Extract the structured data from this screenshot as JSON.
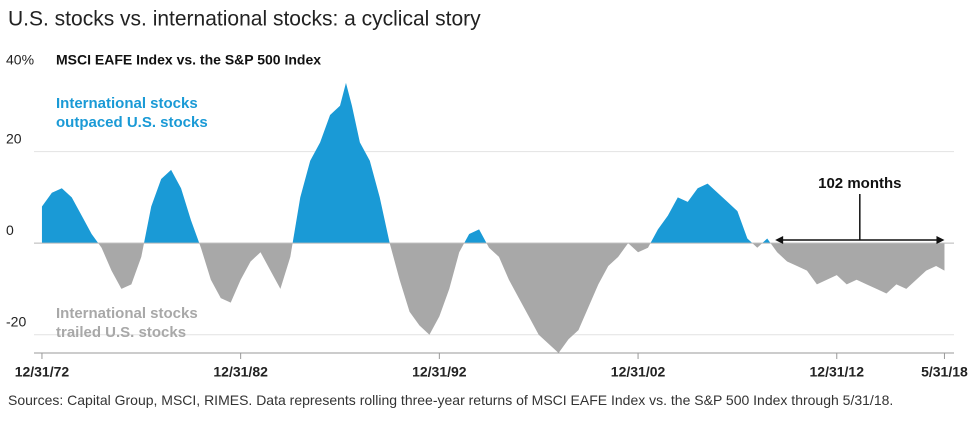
{
  "chart_data": {
    "type": "area",
    "title": "U.S. stocks vs. international stocks: a cyclical story",
    "subtitle": "MSCI EAFE Index vs. the S&P 500 Index",
    "source": "Sources: Capital Group, MSCI, RIMES. Data represents rolling three-year returns of MSCI EAFE Index vs. the S&P 500 Index through 5/31/18.",
    "positive_color": "#1a9ad6",
    "negative_color": "#a8a8a8",
    "annotations": {
      "outpaced": [
        "International stocks",
        "outpaced U.S. stocks"
      ],
      "trailed": [
        "International stocks",
        "trailed U.S. stocks"
      ],
      "span": "102 months"
    },
    "x": [
      1973.0,
      1973.5,
      1974.0,
      1974.5,
      1975.0,
      1975.5,
      1976.0,
      1976.5,
      1977.0,
      1977.5,
      1978.0,
      1978.5,
      1979.0,
      1979.5,
      1980.0,
      1980.5,
      1981.0,
      1981.5,
      1982.0,
      1982.5,
      1983.0,
      1983.5,
      1984.0,
      1984.5,
      1985.0,
      1985.5,
      1986.0,
      1986.5,
      1987.0,
      1987.5,
      1988.0,
      1988.3,
      1988.6,
      1989.0,
      1989.5,
      1990.0,
      1990.5,
      1991.0,
      1991.5,
      1992.0,
      1992.5,
      1993.0,
      1993.5,
      1994.0,
      1994.5,
      1995.0,
      1995.5,
      1996.0,
      1996.5,
      1997.0,
      1997.5,
      1998.0,
      1998.5,
      1999.0,
      1999.5,
      2000.0,
      2000.5,
      2001.0,
      2001.5,
      2002.0,
      2002.5,
      2003.0,
      2003.5,
      2004.0,
      2004.5,
      2005.0,
      2005.5,
      2006.0,
      2006.5,
      2007.0,
      2007.5,
      2008.0,
      2008.5,
      2009.0,
      2009.5,
      2010.0,
      2010.5,
      2011.0,
      2011.5,
      2012.0,
      2012.5,
      2013.0,
      2013.5,
      2014.0,
      2014.5,
      2015.0,
      2015.5,
      2016.0,
      2016.5,
      2017.0,
      2017.5,
      2018.0,
      2018.42
    ],
    "values": [
      8,
      11,
      12,
      10,
      6,
      2,
      -1,
      -6,
      -10,
      -9,
      -3,
      8,
      14,
      16,
      12,
      5,
      -1,
      -8,
      -12,
      -13,
      -8,
      -4,
      -2,
      -6,
      -10,
      -3,
      10,
      18,
      22,
      28,
      30,
      35,
      30,
      22,
      18,
      10,
      0,
      -8,
      -15,
      -18,
      -20,
      -16,
      -10,
      -2,
      2,
      3,
      -1,
      -3,
      -8,
      -12,
      -16,
      -20,
      -22,
      -24,
      -21,
      -19,
      -14,
      -9,
      -5,
      -3,
      0,
      -2,
      -1,
      3,
      6,
      10,
      9,
      12,
      13,
      11,
      9,
      7,
      1,
      -1,
      1,
      -2,
      -4,
      -5,
      -6,
      -9,
      -8,
      -7,
      -9,
      -8,
      -9,
      -10,
      -11,
      -9,
      -10,
      -8,
      -6,
      -5,
      -6
    ],
    "xlim": [
      1972.6,
      2018.9
    ],
    "xticks": [
      {
        "value": 1973.0,
        "label": "12/31/72"
      },
      {
        "value": 1983.0,
        "label": "12/31/82"
      },
      {
        "value": 1993.0,
        "label": "12/31/92"
      },
      {
        "value": 2003.0,
        "label": "12/31/02"
      },
      {
        "value": 2013.0,
        "label": "12/31/12"
      },
      {
        "value": 2018.42,
        "label": "5/31/18"
      }
    ],
    "span_x": [
      2009.9,
      2018.42
    ],
    "ylim": [
      -24,
      40
    ],
    "yticks": [
      -20,
      0,
      20,
      {
        "value": 40,
        "label": "40%"
      }
    ],
    "grid": true
  }
}
